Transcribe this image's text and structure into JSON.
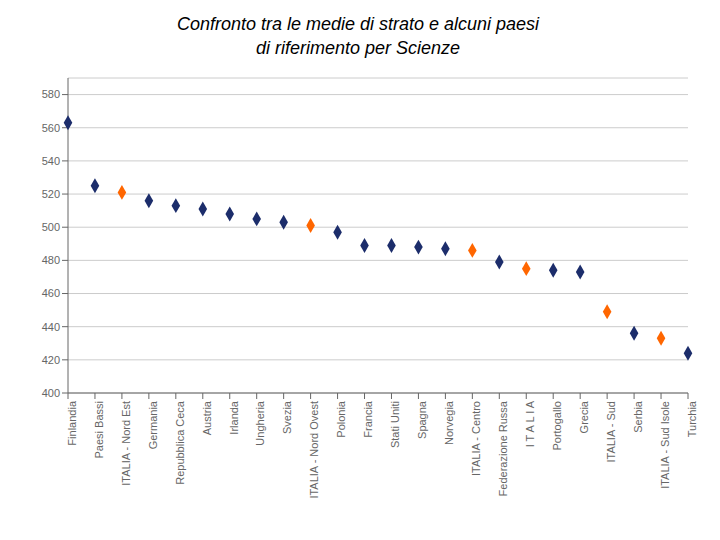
{
  "chart_data": {
    "type": "scatter",
    "title": "Confronto tra le medie di strato e alcuni paesi\ndi riferimento per Scienze",
    "categories": [
      "Finlandia",
      "Paesi Bassi",
      "ITALIA - Nord Est",
      "Germania",
      "Repubblica Ceca",
      "Austria",
      "Irlanda",
      "Ungheria",
      "Svezia",
      "ITALIA - Nord Ovest",
      "Polonia",
      "Francia",
      "Stati Uniti",
      "Spagna",
      "Norvegia",
      "ITALIA - Centro",
      "Federazione Russa",
      "I T A L I A",
      "Portogallo",
      "Grecia",
      "ITALIA - Sud",
      "Serbia",
      "ITALIA - Sud Isole",
      "Turchia"
    ],
    "values": [
      563,
      525,
      521,
      516,
      513,
      511,
      508,
      505,
      503,
      501,
      497,
      489,
      489,
      488,
      487,
      486,
      479,
      475,
      474,
      473,
      449,
      436,
      433,
      424
    ],
    "colors": [
      "#1C2D6B",
      "#1C2D6B",
      "#FF6600",
      "#1C2D6B",
      "#1C2D6B",
      "#1C2D6B",
      "#1C2D6B",
      "#1C2D6B",
      "#1C2D6B",
      "#FF6600",
      "#1C2D6B",
      "#1C2D6B",
      "#1C2D6B",
      "#1C2D6B",
      "#1C2D6B",
      "#FF6600",
      "#1C2D6B",
      "#FF6600",
      "#1C2D6B",
      "#1C2D6B",
      "#FF6600",
      "#1C2D6B",
      "#FF6600",
      "#1C2D6B"
    ],
    "marker": "diamond",
    "ylim": [
      400,
      590
    ],
    "yticks": [
      400,
      420,
      440,
      460,
      480,
      500,
      520,
      540,
      560,
      580
    ],
    "grid": true
  }
}
